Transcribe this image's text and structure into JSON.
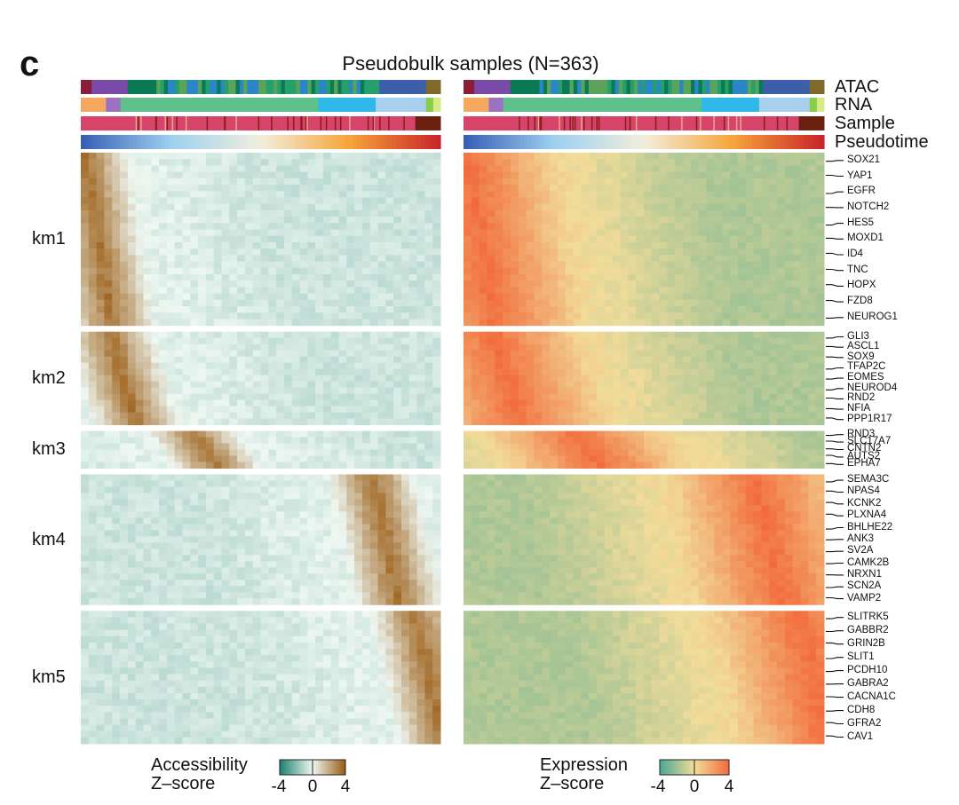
{
  "chart_data": {
    "type": "heatmap",
    "panel_letter": "c",
    "title": "Pseudobulk samples (N=363)",
    "n_samples": 363,
    "annotation_tracks": [
      {
        "name": "ATAC",
        "kind": "categorical",
        "palette": [
          "#8b1c3a",
          "#7a4aa8",
          "#0a7a55",
          "#26a06a",
          "#3b5fa8",
          "#2b86c8",
          "#5aa35a",
          "#7f6a2a"
        ]
      },
      {
        "name": "RNA",
        "kind": "categorical",
        "palette": [
          "#f4a860",
          "#9d71c1",
          "#5fc08c",
          "#2fb8e8",
          "#a9cfee",
          "#8ccc4a",
          "#d6ea8a"
        ]
      },
      {
        "name": "Sample",
        "kind": "categorical",
        "palette": [
          "#d8436a",
          "#8b1c1c",
          "#e8a890",
          "#6b2010"
        ]
      },
      {
        "name": "Pseudotime",
        "kind": "continuous",
        "palette": [
          "#3a60b5",
          "#9ed1f0",
          "#f2eedc",
          "#f7a43a",
          "#c8262a"
        ]
      }
    ],
    "heatmaps": [
      {
        "name": "Accessibility",
        "legend_title_line1": "Accessibility",
        "legend_title_line2": "Z–score",
        "colorscale": [
          "#1a8070",
          "#eef7f2",
          "#9a5a10"
        ],
        "range": [
          -4,
          4
        ],
        "ticks": [
          "-4",
          "0",
          "4"
        ]
      },
      {
        "name": "Expression",
        "legend_title_line1": "Expression",
        "legend_title_line2": "Z–score",
        "colorscale": [
          "#4aa890",
          "#f2dc9a",
          "#f26a3a"
        ],
        "range": [
          -4,
          4
        ],
        "ticks": [
          "-4",
          "0",
          "4"
        ]
      }
    ],
    "clusters": [
      {
        "name": "km1",
        "relative_rows": 195,
        "peak_pseudotime": 0.05,
        "genes": [
          "SOX21",
          "YAP1",
          "EGFR",
          "NOTCH2",
          "HES5",
          "MOXD1",
          "ID4",
          "TNC",
          "HOPX",
          "FZD8",
          "NEUROG1"
        ]
      },
      {
        "name": "km2",
        "relative_rows": 105,
        "peak_pseudotime": 0.12,
        "genes": [
          "GLI3",
          "ASCL1",
          "SOX9",
          "TFAP2C",
          "EOMES",
          "NEUROD4",
          "RND2",
          "NFIA",
          "PPP1R17"
        ]
      },
      {
        "name": "km3",
        "relative_rows": 42,
        "peak_pseudotime": 0.35,
        "genes": [
          "RND3",
          "SLC17A7",
          "CNTN2",
          "AUTS2",
          "EPHA7"
        ]
      },
      {
        "name": "km4",
        "relative_rows": 147,
        "peak_pseudotime": 0.85,
        "genes": [
          "SEMA3C",
          "NPAS4",
          "KCNK2",
          "PLXNA4",
          "BHLHE22",
          "ANK3",
          "SV2A",
          "CAMK2B",
          "NRXN1",
          "SCN2A",
          "VAMP2"
        ]
      },
      {
        "name": "km5",
        "relative_rows": 150,
        "peak_pseudotime": 0.97,
        "genes": [
          "SLITRK5",
          "GABBR2",
          "GRIN2B",
          "SLIT1",
          "PCDH10",
          "GABRA2",
          "CACNA1C",
          "CDH8",
          "GFRA2",
          "CAV1"
        ]
      }
    ]
  }
}
